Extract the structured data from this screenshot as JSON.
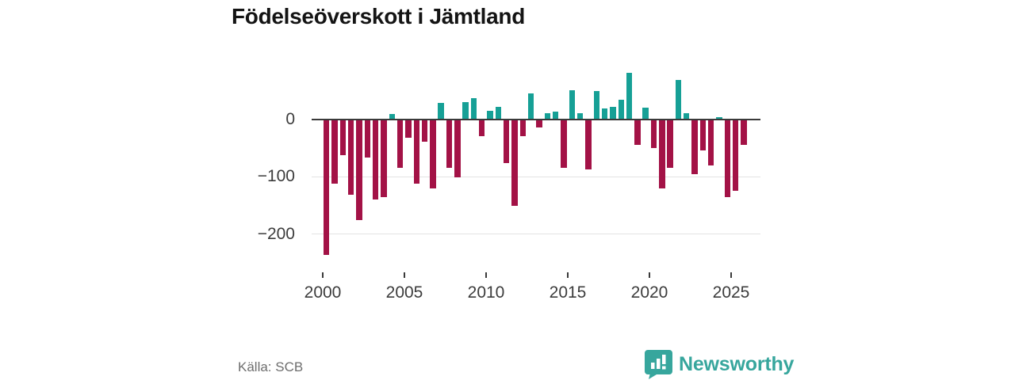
{
  "title": "Födelseöverskott i Jämtland",
  "source": "Källa: SCB",
  "logo": {
    "text": "Newsworthy",
    "icon": "newsworthy-speech-bubble-chart-icon"
  },
  "colors": {
    "positive": "#16a096",
    "negative": "#a31246",
    "zero_line": "#3a3a3a",
    "gridline": "#e3e3e3",
    "axis_text": "#3c3c3c",
    "title_text": "#141414",
    "source_text": "#6e6e6e",
    "logo_teal": "#37a69d",
    "background": "#ffffff"
  },
  "chart_data": {
    "type": "bar",
    "title": "Födelseöverskott i Jämtland",
    "xlabel": "",
    "ylabel": "",
    "grid": "horizontal",
    "legend": "none",
    "ylim": [
      -250,
      100
    ],
    "y_ticks": [
      0,
      -100,
      -200
    ],
    "y_tick_labels": [
      "0",
      "−100",
      "−200"
    ],
    "x_tick_labels": [
      "2000",
      "2005",
      "2010",
      "2015",
      "2020",
      "2025"
    ],
    "x": [
      "2000 H1",
      "2000 H2",
      "2001 H1",
      "2001 H2",
      "2002 H1",
      "2002 H2",
      "2003 H1",
      "2003 H2",
      "2004 H1",
      "2004 H2",
      "2005 H1",
      "2005 H2",
      "2006 H1",
      "2006 H2",
      "2007 H1",
      "2007 H2",
      "2008 H1",
      "2008 H2",
      "2009 H1",
      "2009 H2",
      "2010 H1",
      "2010 H2",
      "2011 H1",
      "2011 H2",
      "2012 H1",
      "2012 H2",
      "2013 H1",
      "2013 H2",
      "2014 H1",
      "2014 H2",
      "2015 H1",
      "2015 H2",
      "2016 H1",
      "2016 H2",
      "2017 H1",
      "2017 H2",
      "2018 H1",
      "2018 H2",
      "2019 H1",
      "2019 H2",
      "2020 H1",
      "2020 H2",
      "2021 H1",
      "2021 H2",
      "2022 H1",
      "2022 H2",
      "2023 H1",
      "2023 H2",
      "2024 H1",
      "2024 H2",
      "2025 H1",
      "2025 H2"
    ],
    "values": [
      -236,
      -112,
      -62,
      -132,
      -176,
      -67,
      -139,
      -136,
      9,
      -85,
      -32,
      -112,
      -39,
      -120,
      28,
      -84,
      -101,
      29,
      36,
      -30,
      14,
      22,
      -76,
      -150,
      -29,
      45,
      -15,
      10,
      13,
      -85,
      50,
      11,
      -88,
      49,
      19,
      22,
      34,
      81,
      -45,
      20,
      -50,
      -120,
      -85,
      68,
      11,
      -95,
      -55,
      -80,
      4,
      -136,
      -125,
      -45
    ],
    "series_note": "positive values teal, negative values crimson"
  }
}
